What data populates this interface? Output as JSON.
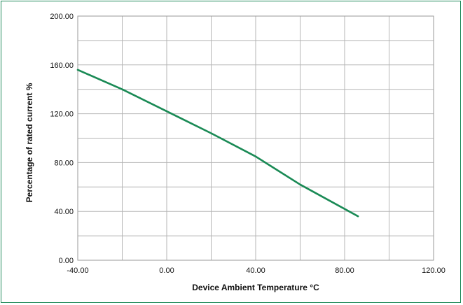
{
  "chart_data": {
    "type": "line",
    "xlabel": "Device Ambient Temperature °C",
    "ylabel": "Percentage of rated current %",
    "xlim": [
      -40,
      120
    ],
    "ylim": [
      0,
      200
    ],
    "x_ticks": [
      "-40.00",
      "0.00",
      "40.00",
      "80.00",
      "120.00"
    ],
    "y_ticks": [
      "0.00",
      "40.00",
      "80.00",
      "120.00",
      "160.00",
      "200.00"
    ],
    "grid": true,
    "series": [
      {
        "color": "#1a8a55",
        "x": [
          -40,
          -20,
          0,
          20,
          40,
          60,
          86
        ],
        "y": [
          156,
          140,
          122,
          104,
          85,
          62,
          36
        ]
      }
    ]
  }
}
